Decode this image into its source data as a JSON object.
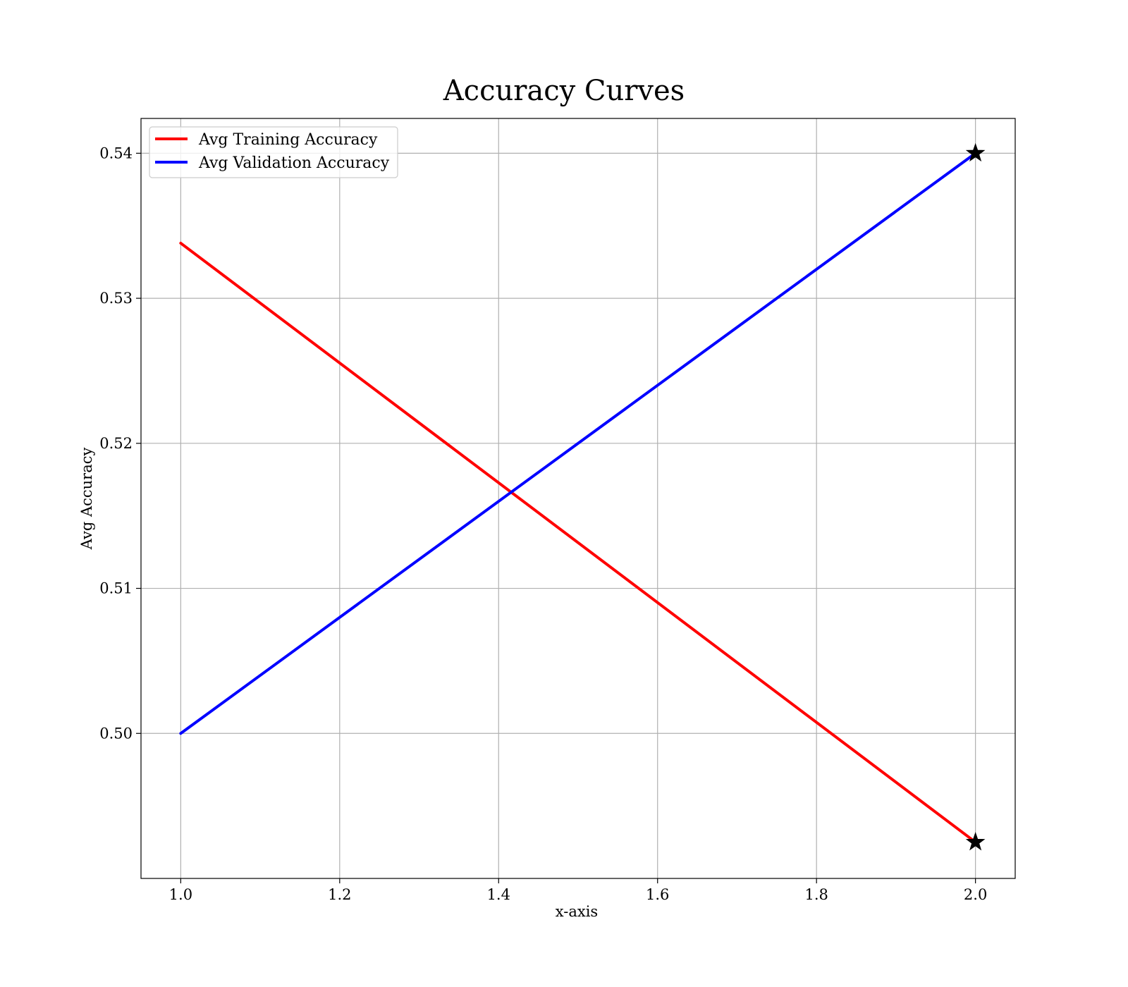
{
  "chart_data": {
    "type": "line",
    "title": "Accuracy Curves",
    "xlabel": "x-axis",
    "ylabel": "Avg Accuracy",
    "x": [
      1.0,
      2.0
    ],
    "xlim": [
      0.95,
      2.05
    ],
    "ylim": [
      0.49,
      0.5424
    ],
    "xticks": [
      1.0,
      1.2,
      1.4,
      1.6,
      1.8,
      2.0
    ],
    "xtick_labels": [
      "1.0",
      "1.2",
      "1.4",
      "1.6",
      "1.8",
      "2.0"
    ],
    "yticks": [
      0.5,
      0.51,
      0.52,
      0.53,
      0.54
    ],
    "ytick_labels": [
      "0.50",
      "0.51",
      "0.52",
      "0.53",
      "0.54"
    ],
    "grid": true,
    "legend_position": "top-left",
    "series": [
      {
        "name": "Avg Training Accuracy",
        "color": "#ff0000",
        "values": [
          0.5338,
          0.4925
        ]
      },
      {
        "name": "Avg Validation Accuracy",
        "color": "#0000ff",
        "values": [
          0.5,
          0.54
        ]
      }
    ],
    "markers": [
      {
        "x": 2.0,
        "y": 0.54,
        "symbol": "star"
      },
      {
        "x": 2.0,
        "y": 0.4925,
        "symbol": "star"
      }
    ]
  }
}
